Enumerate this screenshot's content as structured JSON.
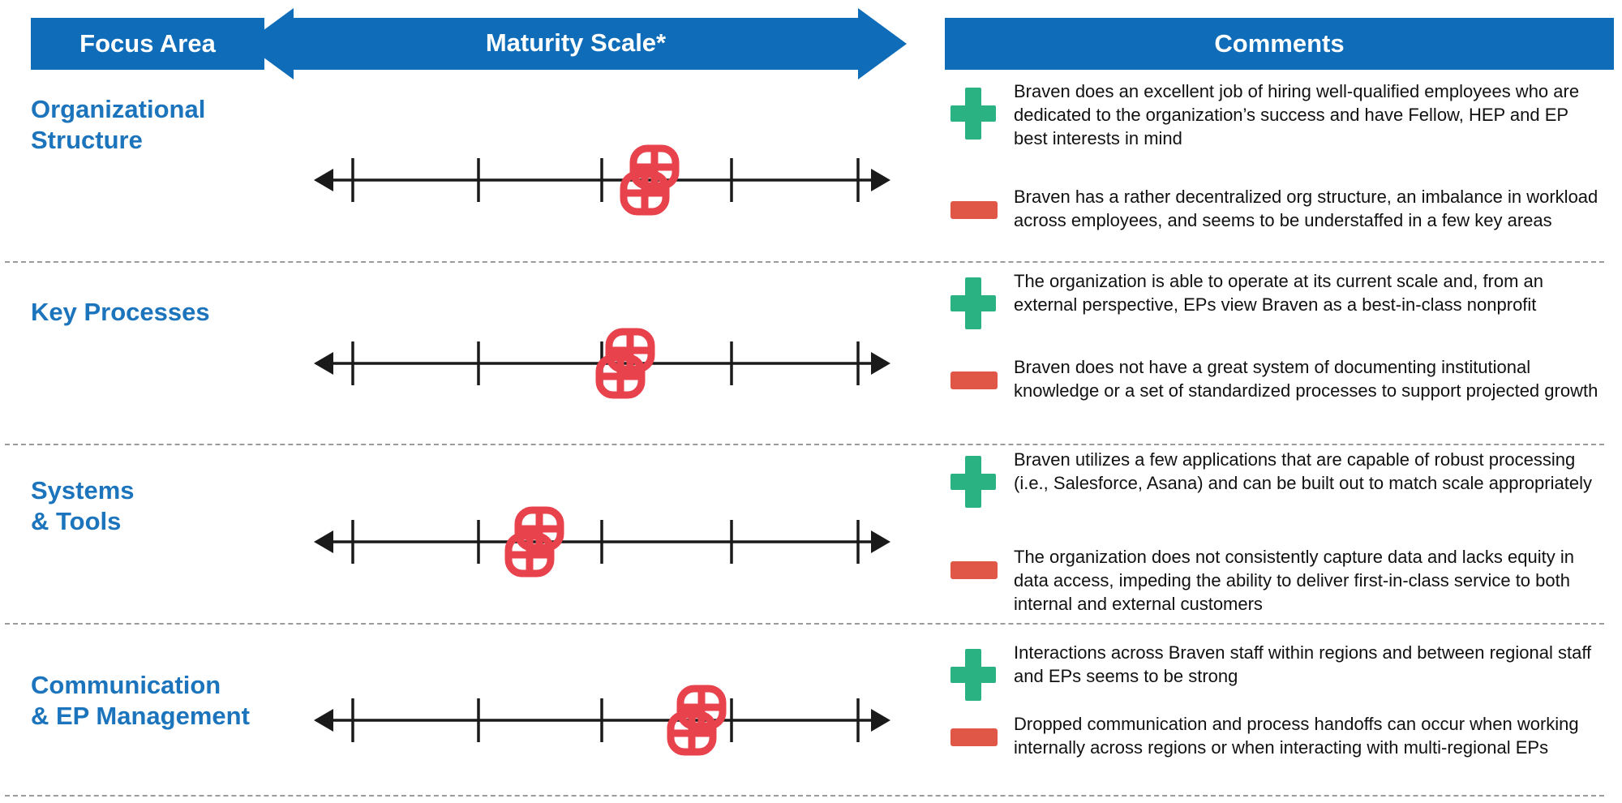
{
  "header": {
    "focus_area": "Focus Area",
    "maturity_scale": "Maturity Scale*",
    "comments": "Comments"
  },
  "colors": {
    "header_blue": "#0E6CB8",
    "label_blue": "#1B74BC",
    "plus_green": "#2BB283",
    "minus_red": "#E15747",
    "marker_red": "#E8424D"
  },
  "rows": [
    {
      "label_line1": "Organizational",
      "label_line2": "Structure",
      "marker_pos": 58.0,
      "positive": "Braven does an excellent job of hiring well-qualified employees who are dedicated to the organization’s success and have Fellow, HEP and EP best interests in mind",
      "negative": "Braven has a rather decentralized org structure, an imbalance in workload across employees, and seems to be understaffed in a few key areas"
    },
    {
      "label_line1": "Key Processes",
      "label_line2": "",
      "marker_pos": 53.8,
      "positive": "The organization is able to operate at its current scale and, from an external perspective, EPs view Braven as a best-in-class nonprofit",
      "negative": "Braven does not have a great system of documenting institutional knowledge or a set of standardized processes to support projected growth"
    },
    {
      "label_line1": "Systems",
      "label_line2": "& Tools",
      "marker_pos": 38.2,
      "positive": "Braven utilizes a few applications that are capable of robust processing (i.e., Salesforce, Asana) and can be built out to match scale appropriately",
      "negative": "The organization does not consistently capture data and lacks equity in data access, impeding the ability to deliver first-in-class service to both internal and external customers"
    },
    {
      "label_line1": "Communication",
      "label_line2": "& EP Management",
      "marker_pos": 66.2,
      "positive": "Interactions across Braven staff within regions and between regional staff and EPs seems to be strong",
      "negative": "Dropped communication and process handoffs can occur when working internally across regions or when interacting with multi-regional EPs"
    }
  ]
}
